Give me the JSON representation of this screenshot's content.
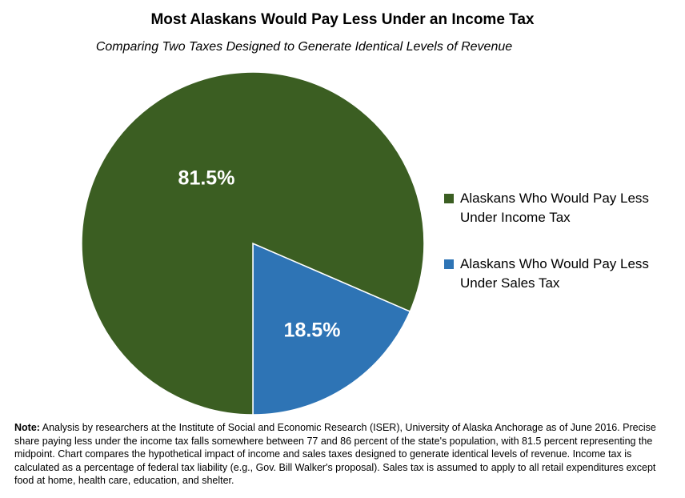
{
  "chart_data": {
    "type": "pie",
    "title": "Most Alaskans Would Pay Less Under an Income Tax",
    "subtitle": "Comparing Two Taxes Designed to Generate Identical Levels of Revenue",
    "slices": [
      {
        "label": "Alaskans Who Would Pay Less Under Income Tax",
        "value": 81.5,
        "data_label": "81.5%",
        "color": "#3b5e22"
      },
      {
        "label": "Alaskans Who Would Pay Less Under Sales Tax",
        "value": 18.5,
        "data_label": "18.5%",
        "color": "#2e74b5"
      }
    ],
    "legend_position": "right"
  },
  "note": {
    "label": "Note:",
    "text": "Analysis by researchers at the Institute of Social and Economic Research (ISER), University of Alaska Anchorage as of June 2016.  Precise share paying less under the income tax falls somewhere between 77 and 86 percent of the state's population, with 81.5 percent representing the midpoint.  Chart compares the hypothetical impact of income and sales taxes designed to generate identical levels of revenue.  Income tax is calculated as a percentage of federal tax liability (e.g., Gov. Bill Walker's proposal).  Sales tax is assumed to apply to all retail expenditures except food at home, health care, education, and shelter."
  }
}
